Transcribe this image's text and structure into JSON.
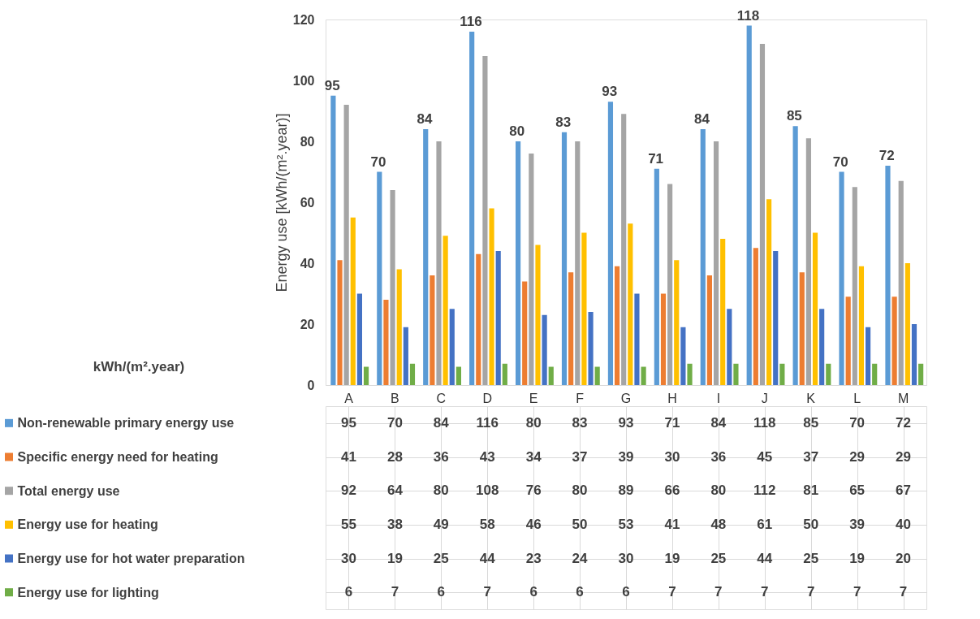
{
  "chart_data": {
    "type": "bar",
    "ylabel": "Energy use [kWh/(m².year)]",
    "annotations": [
      "kWh/(m².year)",
      "95",
      "70",
      "84",
      "116",
      "80",
      "83",
      "93",
      "71",
      "84",
      "118",
      "85",
      "70",
      "72"
    ],
    "categories": [
      "A",
      "B",
      "C",
      "D",
      "E",
      "F",
      "G",
      "H",
      "I",
      "J",
      "K",
      "L",
      "M"
    ],
    "series": [
      {
        "name": "Non-renewable primary energy use",
        "color": "#5b9bd5",
        "values": [
          95,
          70,
          84,
          116,
          80,
          83,
          93,
          71,
          84,
          118,
          85,
          70,
          72
        ]
      },
      {
        "name": "Specific energy need for heating",
        "color": "#ed7d31",
        "values": [
          41,
          28,
          36,
          43,
          34,
          37,
          39,
          30,
          36,
          45,
          37,
          29,
          29
        ]
      },
      {
        "name": "Total energy use",
        "color": "#a5a5a5",
        "values": [
          92,
          64,
          80,
          108,
          76,
          80,
          89,
          66,
          80,
          112,
          81,
          65,
          67
        ]
      },
      {
        "name": "Energy use for heating",
        "color": "#ffc000",
        "values": [
          55,
          38,
          49,
          58,
          46,
          50,
          53,
          41,
          48,
          61,
          50,
          39,
          40
        ]
      },
      {
        "name": "Energy use for hot water preparation",
        "color": "#4472c4",
        "values": [
          30,
          19,
          25,
          44,
          23,
          24,
          30,
          19,
          25,
          44,
          25,
          19,
          20
        ]
      },
      {
        "name": "Energy use for lighting",
        "color": "#70ad47",
        "values": [
          6,
          7,
          6,
          7,
          6,
          6,
          6,
          7,
          7,
          7,
          7,
          7,
          7
        ]
      }
    ],
    "ylim": [
      0,
      120
    ],
    "yticks": [
      0,
      20,
      40,
      60,
      80,
      100,
      120
    ],
    "grid": false,
    "legend": "bottom left",
    "data_labels": true
  }
}
